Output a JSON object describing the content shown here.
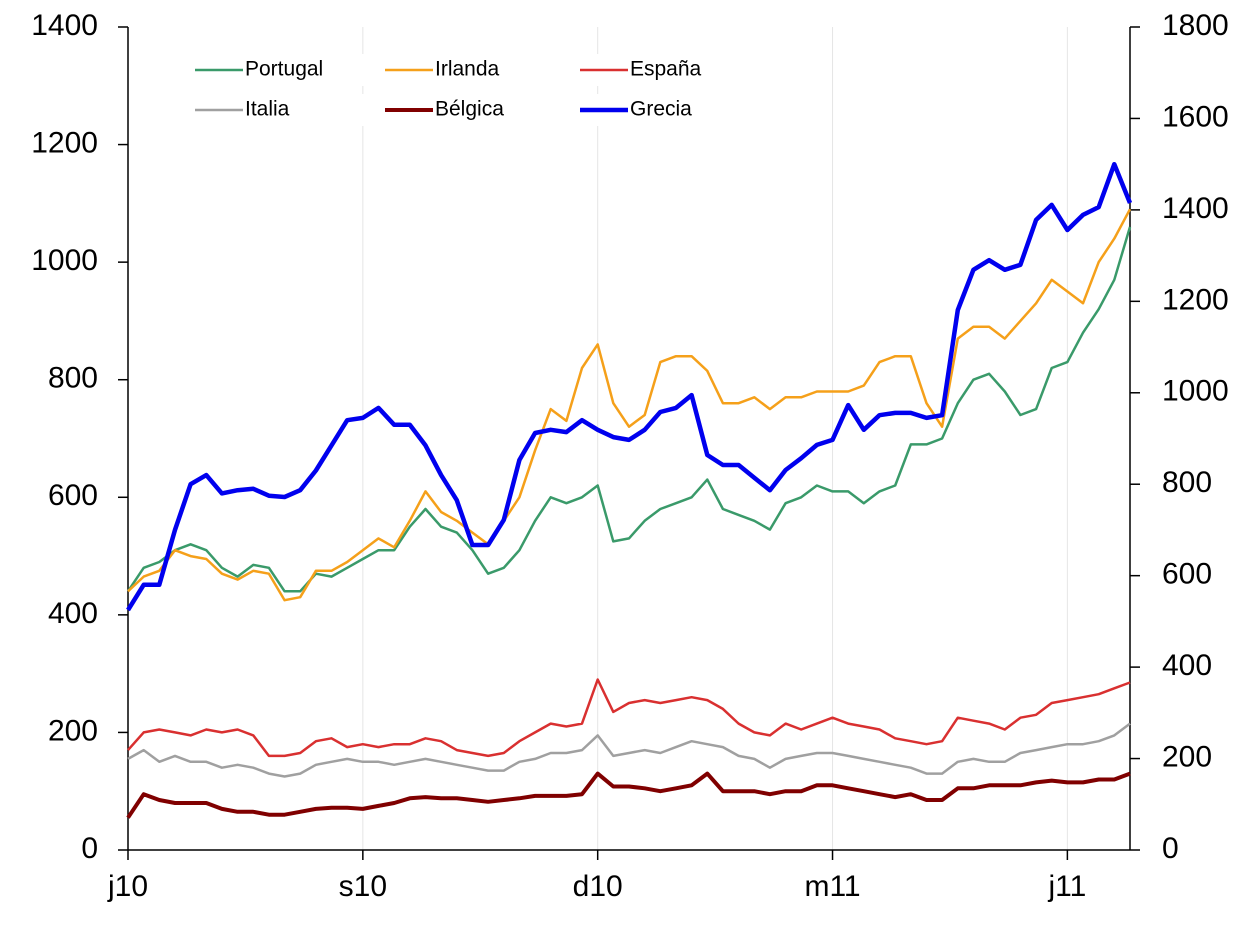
{
  "chart_data": {
    "type": "line",
    "categories": [
      "j10",
      null,
      null,
      null,
      null,
      null,
      null,
      null,
      null,
      null,
      null,
      null,
      null,
      null,
      null,
      "s10",
      null,
      null,
      null,
      null,
      null,
      null,
      null,
      null,
      null,
      null,
      null,
      null,
      null,
      null,
      "d10",
      null,
      null,
      null,
      null,
      null,
      null,
      null,
      null,
      null,
      null,
      null,
      null,
      null,
      null,
      "m11",
      null,
      null,
      null,
      null,
      null,
      null,
      null,
      null,
      null,
      null,
      null,
      null,
      null,
      null,
      "j11",
      null,
      null,
      null,
      null
    ],
    "series": [
      {
        "name": "Portugal",
        "color": "#3a9a6a",
        "width": 2.5,
        "values": [
          440,
          480,
          490,
          510,
          520,
          510,
          480,
          465,
          485,
          480,
          440,
          440,
          470,
          465,
          480,
          495,
          510,
          510,
          550,
          580,
          550,
          540,
          510,
          470,
          480,
          510,
          560,
          600,
          590,
          600,
          620,
          525,
          530,
          560,
          580,
          590,
          600,
          630,
          580,
          570,
          560,
          545,
          590,
          600,
          620,
          610,
          610,
          590,
          610,
          620,
          690,
          690,
          700,
          760,
          800,
          810,
          780,
          740,
          750,
          820,
          830,
          880,
          920,
          970,
          1060
        ]
      },
      {
        "name": "Irlanda",
        "color": "#f5a01a",
        "width": 2.5,
        "values": [
          440,
          465,
          475,
          510,
          500,
          495,
          470,
          460,
          475,
          470,
          425,
          430,
          475,
          475,
          490,
          510,
          530,
          515,
          560,
          610,
          575,
          560,
          540,
          520,
          560,
          600,
          680,
          750,
          730,
          820,
          860,
          760,
          720,
          740,
          830,
          840,
          840,
          815,
          760,
          760,
          770,
          750,
          770,
          770,
          780,
          780,
          780,
          790,
          830,
          840,
          840,
          760,
          720,
          870,
          890,
          890,
          870,
          900,
          930,
          970,
          950,
          930,
          1000,
          1040,
          1090
        ]
      },
      {
        "name": "España",
        "color": "#d93030",
        "width": 2.5,
        "values": [
          170,
          200,
          205,
          200,
          195,
          205,
          200,
          205,
          195,
          160,
          160,
          165,
          185,
          190,
          175,
          180,
          175,
          180,
          180,
          190,
          185,
          170,
          165,
          160,
          165,
          185,
          200,
          215,
          210,
          215,
          290,
          235,
          250,
          255,
          250,
          255,
          260,
          255,
          240,
          215,
          200,
          195,
          215,
          205,
          215,
          225,
          215,
          210,
          205,
          190,
          185,
          180,
          185,
          225,
          220,
          215,
          205,
          225,
          230,
          250,
          255,
          260,
          265,
          275,
          285
        ]
      },
      {
        "name": "Italia",
        "color": "#a0a0a0",
        "width": 2.5,
        "values": [
          155,
          170,
          150,
          160,
          150,
          150,
          140,
          145,
          140,
          130,
          125,
          130,
          145,
          150,
          155,
          150,
          150,
          145,
          150,
          155,
          150,
          145,
          140,
          135,
          135,
          150,
          155,
          165,
          165,
          170,
          195,
          160,
          165,
          170,
          165,
          175,
          185,
          180,
          175,
          160,
          155,
          140,
          155,
          160,
          165,
          165,
          160,
          155,
          150,
          145,
          140,
          130,
          130,
          150,
          155,
          150,
          150,
          165,
          170,
          175,
          180,
          180,
          185,
          195,
          215
        ]
      },
      {
        "name": "Bélgica",
        "color": "#800000",
        "width": 4,
        "values": [
          55,
          95,
          85,
          80,
          80,
          80,
          70,
          65,
          65,
          60,
          60,
          65,
          70,
          72,
          72,
          70,
          75,
          80,
          88,
          90,
          88,
          88,
          85,
          82,
          85,
          88,
          92,
          92,
          92,
          95,
          130,
          108,
          108,
          105,
          100,
          105,
          110,
          130,
          100,
          100,
          100,
          95,
          100,
          100,
          110,
          110,
          105,
          100,
          95,
          90,
          95,
          85,
          85,
          105,
          105,
          110,
          110,
          110,
          115,
          118,
          115,
          115,
          120,
          120,
          130
        ]
      },
      {
        "name": "Grecia",
        "color": "#0000ee",
        "width": 4.5,
        "axis": "y2",
        "values": [
          525,
          580,
          580,
          700,
          800,
          820,
          780,
          787,
          790,
          775,
          772,
          787,
          830,
          885,
          940,
          945,
          967,
          930,
          930,
          885,
          820,
          765,
          667,
          667,
          722,
          853,
          912,
          919,
          914,
          940,
          919,
          903,
          897,
          919,
          958,
          967,
          995,
          864,
          842,
          842,
          814,
          787,
          831,
          857,
          886,
          897,
          973,
          919,
          951,
          956,
          956,
          945,
          951,
          1181,
          1269,
          1290,
          1269,
          1280,
          1378,
          1411,
          1356,
          1389,
          1406,
          1500,
          1415
        ]
      }
    ],
    "ylim": [
      0,
      1400
    ],
    "yticks": [
      0,
      200,
      400,
      600,
      800,
      1000,
      1200,
      1400
    ],
    "y2lim": [
      0,
      1800
    ],
    "y2ticks": [
      0,
      200,
      400,
      600,
      800,
      1000,
      1200,
      1400,
      1600,
      1800
    ],
    "grid": true
  }
}
